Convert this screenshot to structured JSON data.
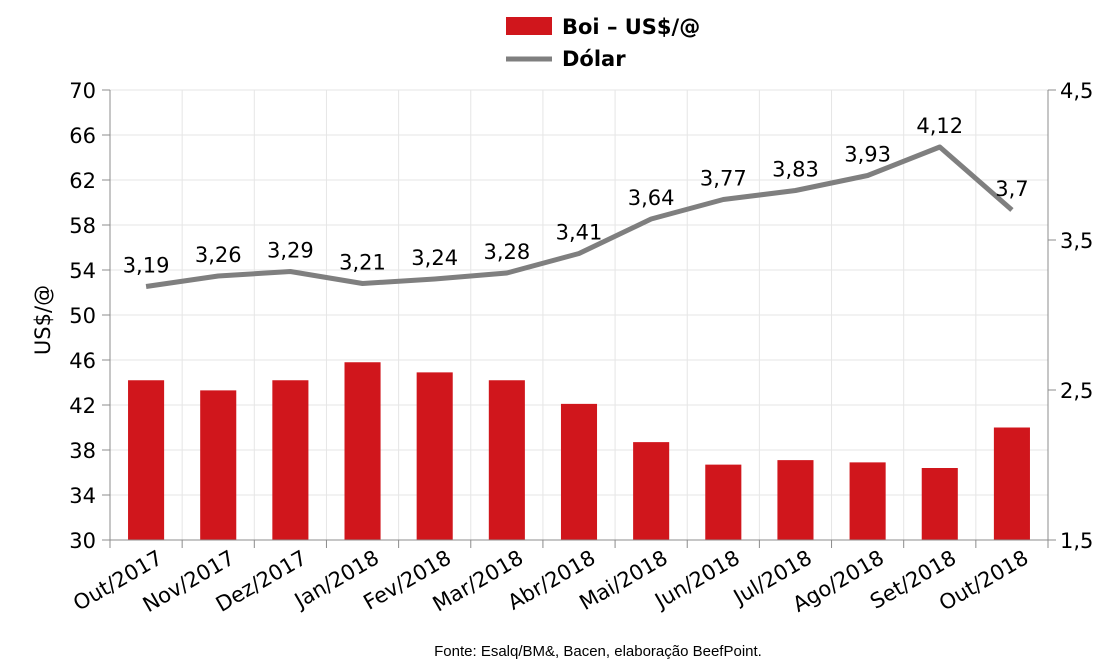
{
  "chart_data": {
    "type": "bar",
    "categories": [
      "Out/2017",
      "Nov/2017",
      "Dez/2017",
      "Jan/2018",
      "Fev/2018",
      "Mar/2018",
      "Abr/2018",
      "Mai/2018",
      "Jun/2018",
      "Jul/2018",
      "Ago/2018",
      "Set/2018",
      "Out/2018"
    ],
    "series": [
      {
        "name": "Boi – US$/@",
        "type": "bar",
        "axis": "left",
        "color": "#D0161C",
        "values": [
          44.2,
          43.3,
          44.2,
          45.8,
          44.9,
          44.2,
          42.1,
          38.7,
          36.7,
          37.1,
          36.9,
          36.4,
          40.0
        ]
      },
      {
        "name": "Dólar",
        "type": "line",
        "axis": "right",
        "color": "#7F7F7F",
        "values": [
          3.19,
          3.26,
          3.29,
          3.21,
          3.24,
          3.28,
          3.41,
          3.64,
          3.77,
          3.83,
          3.93,
          4.12,
          3.7
        ],
        "labels": [
          "3,19",
          "3,26",
          "3,29",
          "3,21",
          "3,24",
          "3,28",
          "3,41",
          "3,64",
          "3,77",
          "3,83",
          "3,93",
          "4,12",
          "3,7"
        ]
      }
    ],
    "ylabel": "US$/@",
    "ylim": [
      30,
      70
    ],
    "y_ticks": [
      "70",
      "66",
      "62",
      "58",
      "54",
      "50",
      "46",
      "42",
      "38",
      "34",
      "30"
    ],
    "y2lim": [
      1.5,
      4.5
    ],
    "y2_ticks": [
      "4,5",
      "3,5",
      "2,5",
      "1,5"
    ],
    "grid": true,
    "legend_position": "top-center",
    "source": "Fonte: Esalq/BM&, Bacen, elaboração BeefPoint."
  }
}
